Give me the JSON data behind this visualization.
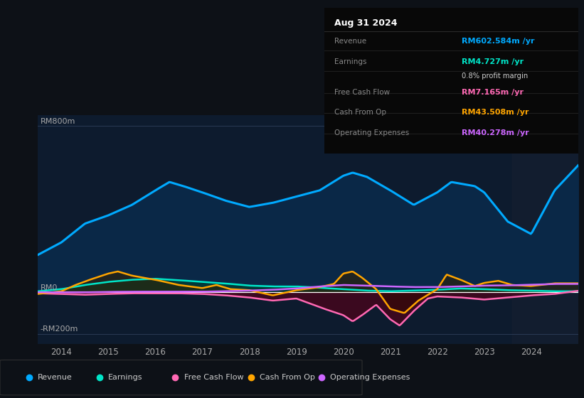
{
  "bg_color": "#0d1117",
  "plot_bg_color": "#0d1b2e",
  "info_box_bg": "#080808",
  "title_text": "Aug 31 2024",
  "info_rows": [
    {
      "label": "Revenue",
      "value": "RM602.584m /yr",
      "value_color": "#00aaff",
      "extra": null
    },
    {
      "label": "Earnings",
      "value": "RM4.727m /yr",
      "value_color": "#00e5c8",
      "extra": "0.8% profit margin"
    },
    {
      "label": "Free Cash Flow",
      "value": "RM7.165m /yr",
      "value_color": "#ff69b4",
      "extra": null
    },
    {
      "label": "Cash From Op",
      "value": "RM43.508m /yr",
      "value_color": "#ffa500",
      "extra": null
    },
    {
      "label": "Operating Expenses",
      "value": "RM40.278m /yr",
      "value_color": "#cc66ff",
      "extra": null
    }
  ],
  "ylabel_top": "RM800m",
  "ylabel_zero": "RM0",
  "ylabel_neg": "-RM200m",
  "revenue_color": "#00aaff",
  "revenue_fill": "#0a2a4a",
  "earnings_color": "#00e5c8",
  "earnings_fill": "#003d35",
  "fcf_color": "#ff69b4",
  "cashfromop_color": "#ffa500",
  "opex_color": "#cc66ff",
  "legend_items": [
    {
      "label": "Revenue",
      "color": "#00aaff"
    },
    {
      "label": "Earnings",
      "color": "#00e5c8"
    },
    {
      "label": "Free Cash Flow",
      "color": "#ff69b4"
    },
    {
      "label": "Cash From Op",
      "color": "#ffa500"
    },
    {
      "label": "Operating Expenses",
      "color": "#cc66ff"
    }
  ]
}
